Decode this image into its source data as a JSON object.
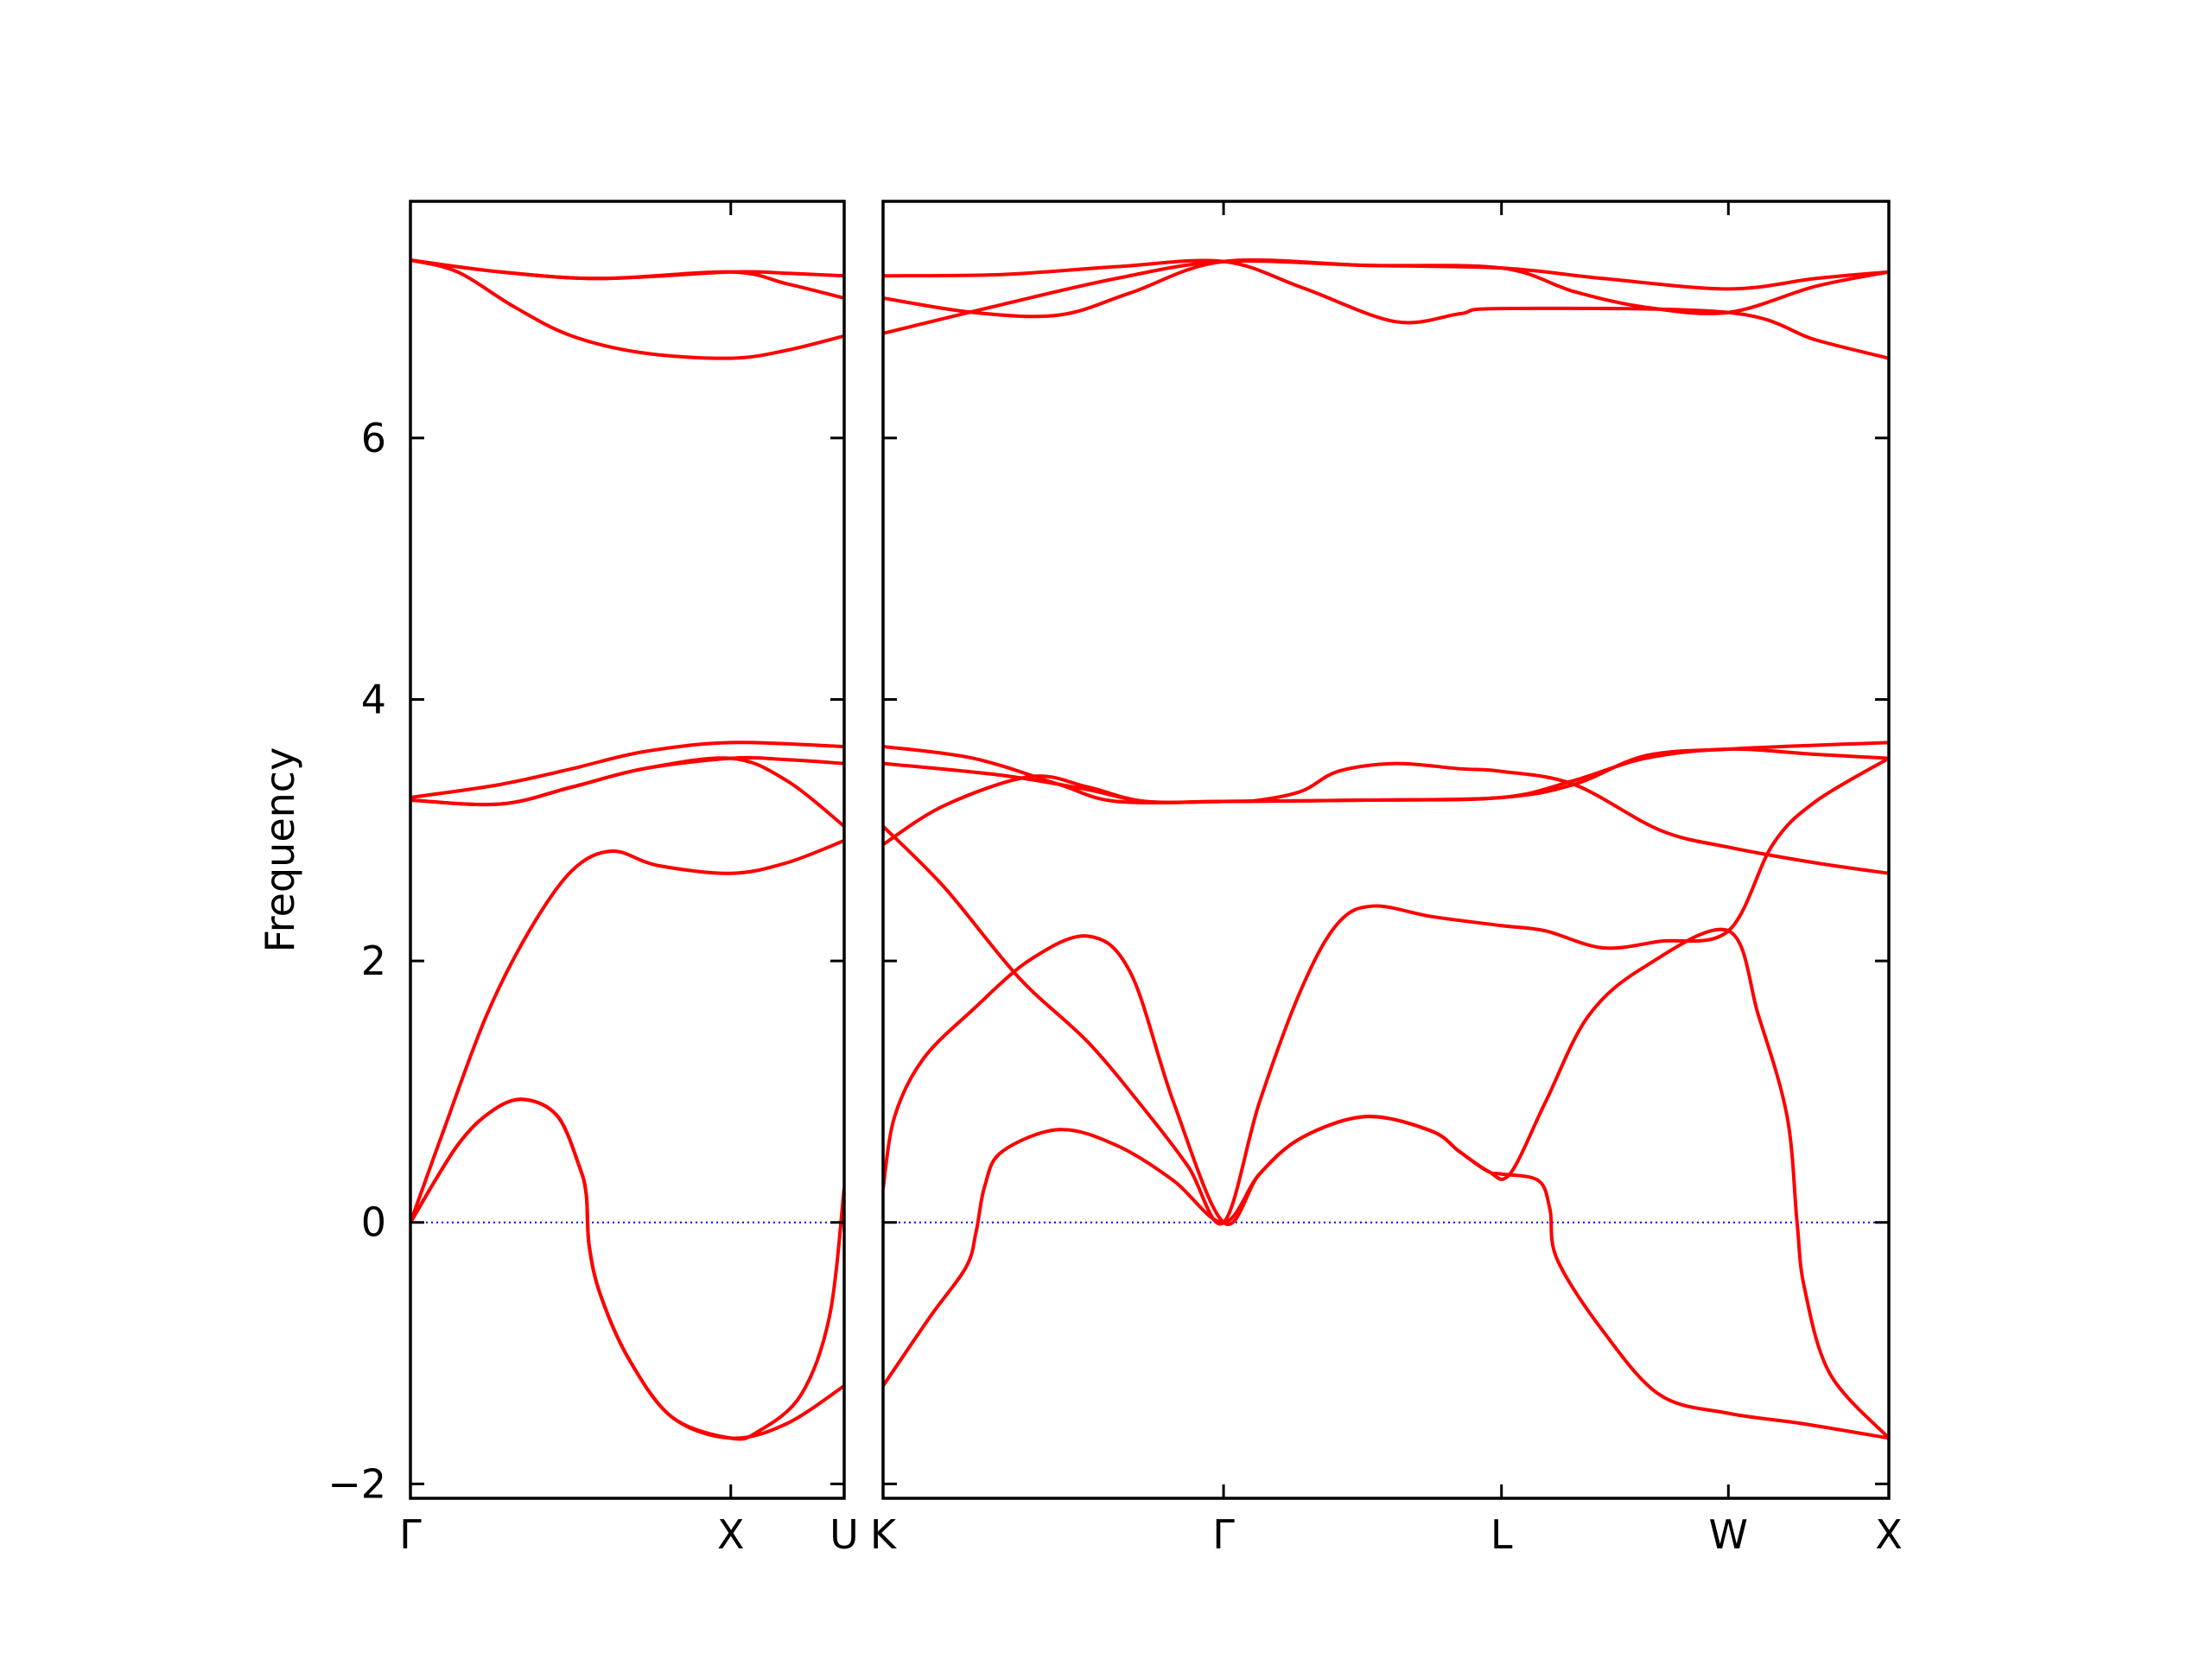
{
  "chart_data": [
    {
      "type": "line",
      "ylabel": "Frequency",
      "xlim": [
        0,
        1.354
      ],
      "ylim": [
        -2.11,
        7.81
      ],
      "xticks": [
        {
          "value": 0,
          "label": "Γ"
        },
        {
          "value": 1,
          "label": "X"
        },
        {
          "value": 1.354,
          "label": "U"
        }
      ],
      "yticks": [
        {
          "value": -2,
          "label": "−2"
        },
        0,
        2,
        4,
        6
      ],
      "ytick_labels": true,
      "zero_line_color": "#0000ff",
      "series": [
        {
          "color": "#ff0000",
          "x": [
            0,
            0.147,
            0.259,
            0.357,
            0.46,
            0.527,
            0.549,
            0.558,
            0.594,
            0.683,
            0.817,
            1,
            1.174,
            1.354
          ],
          "values": [
            0,
            0.59,
            0.86,
            0.94,
            0.81,
            0.43,
            0.21,
            -0.18,
            -0.56,
            -1.05,
            -1.49,
            -1.65,
            -1.54,
            -1.25
          ]
        },
        {
          "color": "#ff0000",
          "x": [
            0,
            0.147,
            0.259,
            0.357,
            0.46,
            0.527,
            0.549,
            0.558,
            0.594,
            0.683,
            0.817,
            1,
            1.085,
            1.219,
            1.308,
            1.354
          ],
          "values": [
            0,
            0.59,
            0.86,
            0.94,
            0.81,
            0.43,
            0.21,
            -0.18,
            -0.56,
            -1.05,
            -1.49,
            -1.65,
            -1.6,
            -1.32,
            -0.72,
            0.26
          ]
        },
        {
          "color": "#ff0000",
          "x": [
            0,
            0.103,
            0.237,
            0.371,
            0.504,
            0.629,
            0.772,
            1,
            1.174,
            1.354
          ],
          "values": [
            0,
            0.7,
            1.58,
            2.23,
            2.69,
            2.84,
            2.73,
            2.67,
            2.75,
            2.92
          ]
        },
        {
          "color": "#ff0000",
          "x": [
            0,
            0.281,
            0.504,
            0.728,
            1,
            1.174,
            1.354
          ],
          "values": [
            3.23,
            3.2,
            3.33,
            3.47,
            3.55,
            3.38,
            3.03
          ]
        },
        {
          "color": "#ff0000",
          "x": [
            0,
            0.281,
            0.504,
            0.728,
            1,
            1.174,
            1.354
          ],
          "values": [
            3.23,
            3.2,
            3.33,
            3.47,
            3.55,
            3.54,
            3.51
          ]
        },
        {
          "color": "#ff0000",
          "x": [
            0,
            0.281,
            0.504,
            0.728,
            1,
            1.354
          ],
          "values": [
            3.25,
            3.35,
            3.47,
            3.6,
            3.67,
            3.64
          ]
        },
        {
          "color": "#ff0000",
          "x": [
            0,
            0.147,
            0.326,
            0.504,
            0.728,
            1,
            1.174,
            1.354
          ],
          "values": [
            7.36,
            7.27,
            7.0,
            6.78,
            6.65,
            6.61,
            6.67,
            6.78
          ]
        },
        {
          "color": "#ff0000",
          "x": [
            0,
            0.281,
            0.594,
            1,
            1.174,
            1.354
          ],
          "values": [
            7.36,
            7.27,
            7.22,
            7.27,
            7.18,
            7.07
          ]
        },
        {
          "color": "#ff0000",
          "x": [
            0,
            0.281,
            0.594,
            1,
            1.174,
            1.354
          ],
          "values": [
            7.36,
            7.27,
            7.22,
            7.27,
            7.26,
            7.24
          ]
        }
      ]
    },
    {
      "type": "line",
      "xlim": [
        0,
        3.134
      ],
      "ylim": [
        -2.11,
        7.81
      ],
      "xticks": [
        {
          "value": 0,
          "label": "K"
        },
        {
          "value": 1.061,
          "label": "Γ"
        },
        {
          "value": 1.927,
          "label": "L"
        },
        {
          "value": 2.634,
          "label": "W"
        },
        {
          "value": 3.134,
          "label": "X"
        }
      ],
      "yticks": [
        -2,
        0,
        2,
        4,
        6
      ],
      "ytick_labels": false,
      "zero_line_color": "#0000ff",
      "series": [
        {
          "color": "#ff0000",
          "x": [
            0,
            0.147,
            0.259,
            0.29,
            0.317,
            0.37,
            0.548,
            0.727,
            0.905,
            1.061,
            1.173,
            1.306,
            1.507,
            1.708,
            1.797,
            1.886,
            1.927,
            2.042,
            2.078,
            2.1,
            2.243,
            2.421,
            2.634,
            2.867,
            3.134
          ],
          "values": [
            -1.25,
            -0.72,
            -0.34,
            -0.07,
            0.28,
            0.54,
            0.71,
            0.59,
            0.32,
            0,
            0.37,
            0.65,
            0.81,
            0.7,
            0.54,
            0.39,
            0.37,
            0.32,
            0.1,
            -0.28,
            -0.83,
            -1.32,
            -1.46,
            -1.54,
            -1.65
          ]
        },
        {
          "color": "#ff0000",
          "x": [
            0,
            0.036,
            0.125,
            0.281,
            0.459,
            0.638,
            0.771,
            0.905,
            1.061,
            1.173,
            1.306,
            1.507,
            1.708,
            1.797,
            1.886,
            1.953,
            2.064,
            2.198,
            2.376,
            2.634,
            2.728,
            2.817,
            2.848,
            2.871,
            2.951,
            3.134
          ],
          "values": [
            0.26,
            0.81,
            1.25,
            1.63,
            2.01,
            2.19,
            1.91,
            0.92,
            0,
            0.37,
            0.65,
            0.81,
            0.7,
            0.54,
            0.39,
            0.37,
            0.92,
            1.58,
            1.96,
            2.23,
            1.58,
            0.81,
            0,
            -0.5,
            -1.16,
            -1.65
          ]
        },
        {
          "color": "#ff0000",
          "x": [
            0,
            0.192,
            0.424,
            0.638,
            0.816,
            0.95,
            1.061,
            1.173,
            1.306,
            1.418,
            1.529,
            1.708,
            1.927,
            2.064,
            2.243,
            2.421,
            2.634,
            2.772,
            2.906,
            3.134
          ],
          "values": [
            3.03,
            2.56,
            1.87,
            1.38,
            0.86,
            0.43,
            0,
            0.92,
            1.8,
            2.29,
            2.42,
            2.34,
            2.27,
            2.23,
            2.1,
            2.15,
            2.23,
            2.89,
            3.22,
            3.55
          ]
        },
        {
          "color": "#ff0000",
          "x": [
            0,
            0.192,
            0.459,
            0.638,
            0.816,
            1.061,
            1.507,
            1.927,
            2.153,
            2.376,
            2.634,
            2.906,
            3.134
          ],
          "values": [
            2.89,
            3.19,
            3.41,
            3.33,
            3.22,
            3.22,
            3.23,
            3.25,
            3.35,
            3.57,
            3.62,
            3.65,
            3.67
          ]
        },
        {
          "color": "#ff0000",
          "x": [
            0,
            0.37,
            0.638,
            0.816,
            1.061,
            1.507,
            1.927,
            2.153,
            2.376,
            2.634,
            2.906,
            3.134
          ],
          "values": [
            3.51,
            3.42,
            3.31,
            3.22,
            3.22,
            3.23,
            3.25,
            3.38,
            3.55,
            3.62,
            3.58,
            3.55
          ]
        },
        {
          "color": "#ff0000",
          "x": [
            0,
            0.281,
            0.548,
            0.727,
            1.061,
            1.173,
            1.306,
            1.418,
            1.596,
            1.797,
            1.927,
            2.153,
            2.421,
            2.634,
            2.906,
            3.134
          ],
          "values": [
            3.64,
            3.55,
            3.35,
            3.22,
            3.22,
            3.23,
            3.3,
            3.45,
            3.51,
            3.47,
            3.45,
            3.35,
            3.0,
            2.87,
            2.75,
            2.67
          ]
        },
        {
          "color": "#ff0000",
          "x": [
            0,
            0.37,
            0.727,
            1.061,
            1.507,
            1.927,
            2.243,
            2.634,
            2.906,
            3.134
          ],
          "values": [
            6.8,
            7.02,
            7.22,
            7.35,
            7.32,
            7.3,
            7.22,
            7.14,
            7.22,
            7.27
          ]
        },
        {
          "color": "#ff0000",
          "x": [
            0,
            0.281,
            0.548,
            0.771,
            1.061,
            1.507,
            1.927,
            2.153,
            2.376,
            2.634,
            2.906,
            3.134
          ],
          "values": [
            7.07,
            6.96,
            6.94,
            7.11,
            7.35,
            7.32,
            7.3,
            7.12,
            7.0,
            6.96,
            7.16,
            7.27
          ]
        },
        {
          "color": "#ff0000",
          "x": [
            0,
            0.37,
            0.727,
            1.061,
            1.306,
            1.596,
            1.797,
            1.927,
            2.634,
            2.906,
            3.134
          ],
          "values": [
            7.24,
            7.25,
            7.31,
            7.35,
            7.15,
            6.89,
            6.95,
            6.99,
            6.96,
            6.75,
            6.61
          ]
        }
      ]
    }
  ]
}
